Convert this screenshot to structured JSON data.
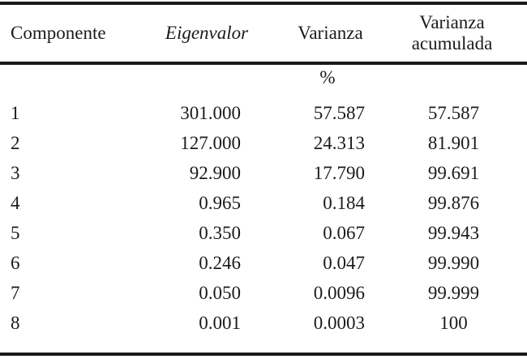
{
  "colors": {
    "background": "#ffffff",
    "text": "#1b1b1b",
    "rule": "#1a1a1a"
  },
  "table": {
    "headers": {
      "componente": "Componente",
      "eigenvalor": "Eigenvalor",
      "varianza": "Varianza",
      "varianza_acumulada": "Varianza acumulada"
    },
    "unit_label": "%",
    "rows": [
      {
        "componente": "1",
        "eigenvalor": "301.000",
        "varianza": "57.587",
        "varianza_acumulada": "57.587"
      },
      {
        "componente": "2",
        "eigenvalor": "127.000",
        "varianza": "24.313",
        "varianza_acumulada": "81.901"
      },
      {
        "componente": "3",
        "eigenvalor": "92.900",
        "varianza": "17.790",
        "varianza_acumulada": "99.691"
      },
      {
        "componente": "4",
        "eigenvalor": "0.965",
        "varianza": "0.184",
        "varianza_acumulada": "99.876"
      },
      {
        "componente": "5",
        "eigenvalor": "0.350",
        "varianza": "0.067",
        "varianza_acumulada": "99.943"
      },
      {
        "componente": "6",
        "eigenvalor": "0.246",
        "varianza": "0.047",
        "varianza_acumulada": "99.990"
      },
      {
        "componente": "7",
        "eigenvalor": "0.050",
        "varianza": "0.0096",
        "varianza_acumulada": "99.999"
      },
      {
        "componente": "8",
        "eigenvalor": "0.001",
        "varianza": "0.0003",
        "varianza_acumulada": "100"
      }
    ]
  },
  "chart_data": {
    "type": "table",
    "title": "",
    "columns": [
      "Componente",
      "Eigenvalor",
      "Varianza %",
      "Varianza acumulada %"
    ],
    "rows": [
      [
        1,
        301.0,
        57.587,
        57.587
      ],
      [
        2,
        127.0,
        24.313,
        81.901
      ],
      [
        3,
        92.9,
        17.79,
        99.691
      ],
      [
        4,
        0.965,
        0.184,
        99.876
      ],
      [
        5,
        0.35,
        0.067,
        99.943
      ],
      [
        6,
        0.246,
        0.047,
        99.99
      ],
      [
        7,
        0.05,
        0.0096,
        99.999
      ],
      [
        8,
        0.001,
        0.0003,
        100
      ]
    ]
  }
}
